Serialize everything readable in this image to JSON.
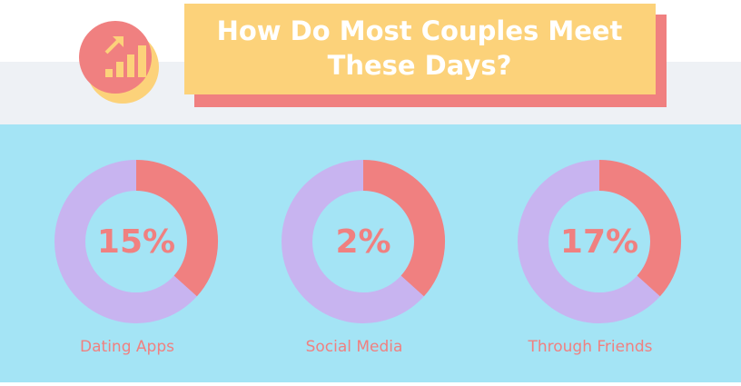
{
  "header": {
    "title_lines": [
      "How Do Most Couples Meet",
      "These Days?"
    ]
  },
  "stats": [
    {
      "percent": "15%",
      "label": "Dating Apps"
    },
    {
      "percent": "2%",
      "label": "Social Media"
    },
    {
      "percent": "17%",
      "label": "Through Friends"
    }
  ]
}
